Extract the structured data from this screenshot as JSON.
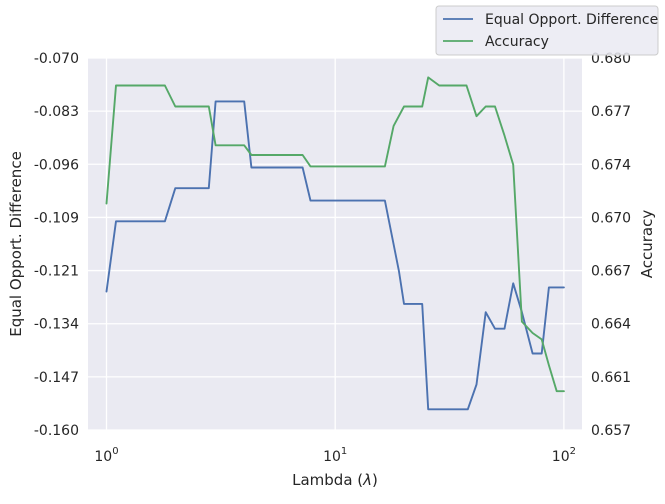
{
  "chart_data": {
    "type": "line",
    "title": "",
    "xlabel": "Lambda ($\\lambda$)",
    "xlabel_prefix": "Lambda (",
    "xlabel_symbol": "λ",
    "xlabel_suffix": ")",
    "x_scale": "log",
    "xlim": [
      0.83,
      120
    ],
    "x_ticks": [
      1,
      10,
      100
    ],
    "x_tick_labels": [
      {
        "base": "10",
        "exp": "0"
      },
      {
        "base": "10",
        "exp": "1"
      },
      {
        "base": "10",
        "exp": "2"
      }
    ],
    "ylabel_left": "Equal Opport. Difference",
    "ylabel_right": "Accuracy",
    "ylim_left": [
      -0.16,
      -0.07
    ],
    "ylim_right": [
      0.657,
      0.68
    ],
    "yticks_left": [
      "-0.070",
      "-0.083",
      "-0.096",
      "-0.109",
      "-0.121",
      "-0.134",
      "-0.147",
      "-0.160"
    ],
    "yticks_right": [
      "0.680",
      "0.677",
      "0.674",
      "0.670",
      "0.667",
      "0.664",
      "0.661",
      "0.657"
    ],
    "grid": true,
    "legend_position": "top-right",
    "colors": {
      "background": "#eaeaf2",
      "grid": "#ffffff",
      "series1": "#4c72b0",
      "series2": "#55a868"
    },
    "series": [
      {
        "name": "Equal Opport. Difference",
        "axis": "left",
        "color": "#4c72b0",
        "x": [
          1.0,
          1.1,
          1.8,
          2.0,
          2.8,
          3.0,
          4.0,
          4.3,
          7.2,
          7.8,
          16.5,
          19.0,
          20.0,
          24.0,
          25.5,
          38.0,
          41.5,
          45.5,
          50.0,
          55.0,
          60.0,
          65.5,
          73.0,
          80.0,
          86.0,
          93.0,
          100.0
        ],
        "y": [
          -0.1265,
          -0.1095,
          -0.1095,
          -0.1015,
          -0.1015,
          -0.0805,
          -0.0805,
          -0.0965,
          -0.0965,
          -0.1045,
          -0.1045,
          -0.1215,
          -0.1295,
          -0.1295,
          -0.155,
          -0.155,
          -0.149,
          -0.1315,
          -0.1355,
          -0.1355,
          -0.1245,
          -0.1315,
          -0.1415,
          -0.1415,
          -0.1255,
          -0.1255,
          -0.1255
        ]
      },
      {
        "name": "Accuracy",
        "axis": "right",
        "color": "#55a868",
        "x": [
          1.0,
          1.1,
          1.8,
          2.0,
          2.8,
          3.0,
          4.0,
          4.3,
          7.2,
          7.8,
          16.5,
          18.0,
          20.0,
          24.0,
          25.5,
          28.5,
          37.5,
          41.5,
          45.5,
          50.0,
          55.0,
          60.0,
          65.5,
          73.0,
          80.0,
          86.0,
          93.0,
          100.0
        ],
        "y": [
          0.671,
          0.6783,
          0.6783,
          0.677,
          0.677,
          0.6746,
          0.6746,
          0.674,
          0.674,
          0.6733,
          0.6733,
          0.6758,
          0.677,
          0.677,
          0.6788,
          0.6783,
          0.6783,
          0.6764,
          0.677,
          0.677,
          0.6752,
          0.6734,
          0.6637,
          0.663,
          0.6626,
          0.661,
          0.6594,
          0.6594
        ]
      }
    ]
  }
}
